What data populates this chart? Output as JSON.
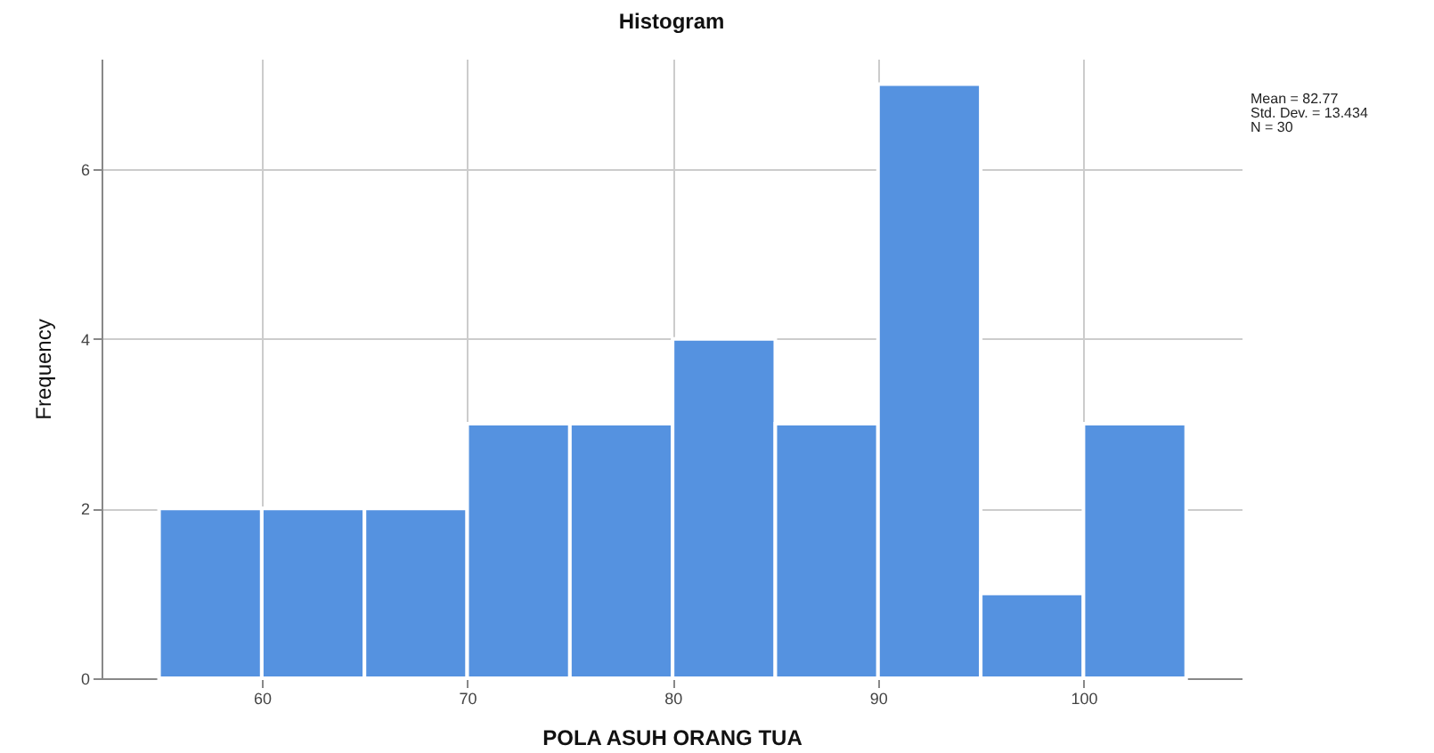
{
  "chart_data": {
    "type": "histogram",
    "title": "Histogram",
    "xlabel": "POLA ASUH ORANG TUA",
    "ylabel": "Frequency",
    "bins": [
      55,
      60,
      65,
      70,
      75,
      80,
      85,
      90,
      95,
      100,
      105
    ],
    "values": [
      2,
      2,
      2,
      3,
      3,
      4,
      3,
      7,
      1,
      3
    ],
    "color": "#5592e0",
    "xlim": [
      52.2,
      107.7
    ],
    "xticks": [
      60,
      70,
      80,
      90,
      100
    ],
    "ylim": [
      0,
      7.3
    ],
    "yticks": [
      0,
      2,
      4,
      6
    ],
    "grid": true,
    "annotations": [
      "Mean = 82.77",
      "Std. Dev. = 13.434",
      "N = 30"
    ]
  }
}
